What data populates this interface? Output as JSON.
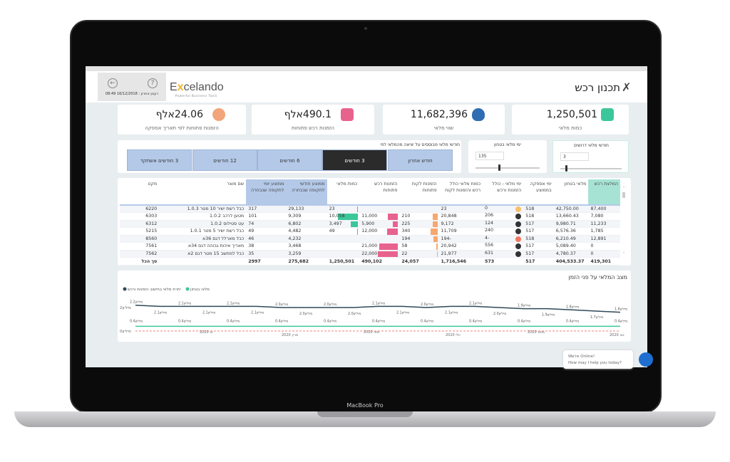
{
  "device": {
    "label": "MacBook Pro"
  },
  "header": {
    "title": "תכנון רכש",
    "refresh": "רענון אחרון : 16/12/2018 08:49",
    "logo": "Excelando",
    "logo_tagline": "Powerful Business Tools",
    "back_icon": "arrow-left-icon",
    "help_icon": "question-icon"
  },
  "kpis": [
    {
      "value": "1,250,501",
      "label": "כמות מלאי",
      "icon": "hand-truck-icon",
      "color": "#3cc79a"
    },
    {
      "value": "11,682,396",
      "label": "שווי מלאי",
      "icon": "money-bag-icon",
      "color": "#2f6db3"
    },
    {
      "value": "490.1אלף",
      "label": "הזמנות רכש פתוחות",
      "icon": "truck-icon",
      "color": "#e8628e"
    },
    {
      "value": "24.06אלף",
      "label": "הזמנות פתוחות לפי תאריך אספקה",
      "icon": "person-clock-icon",
      "color": "#f2a57a"
    }
  ],
  "filters": {
    "label": "חודשי מלאי מבוססים על יציאה מהמלאי לפי",
    "options": [
      "חודש אחרון",
      "3 חודשים",
      "6 חודשים",
      "12 חודשים",
      "3 חודשים אשתקד"
    ],
    "selected": "3 חודשים",
    "sliders": [
      {
        "label": "חודשי מלאי דרושים",
        "value": "3",
        "level": 0.1
      },
      {
        "label": "ימי מלאי בטחון",
        "value": "135",
        "level": 0.35
      }
    ]
  },
  "table": {
    "columns": [
      "המלצת רכש",
      "מלאי בטחון",
      "ימי אספקה בממוצע",
      "ימי מלאי - כולל הזמנות ורכש",
      "כמות מלאי כולל רכש והזמנות לקוח",
      "הזמנות לקוח פתוחות",
      "הזמנות רכש פתוחות",
      "כמות מלאי",
      "ממוצע חודשי לתקופה שנבחרה",
      "ממוצע יומי לתקופה שנבחרה",
      "שם מוצר",
      "מקט"
    ],
    "rows": [
      {
        "rec": "87,400",
        "safety": "42,750.00",
        "supply": "518",
        "days": "0",
        "status": "#f7c06a",
        "total": "23",
        "cust": "",
        "purch": "",
        "stock": "23",
        "monthly": "29,133",
        "daily": "317",
        "name": "כבל רשת ישיר 10 מטר 1.0.3",
        "sku": "6220"
      },
      {
        "rec": "7,080",
        "safety": "13,660.43",
        "supply": "518",
        "days": "206",
        "status": "#333333",
        "total": "20,848",
        "cust": "210",
        "purch": "11,000",
        "stock": "10,058",
        "monthly": "9,309",
        "daily": "101",
        "name": "מטען לרכב 1.0.2",
        "sku": "6303"
      },
      {
        "rec": "11,233",
        "safety": "9,980.71",
        "supply": "517",
        "days": "124",
        "status": "#333333",
        "total": "9,172",
        "cust": "225",
        "purch": "5,900",
        "stock": "3,497",
        "monthly": "6,802",
        "daily": "74",
        "name": "עט סטילוס 1.0.2",
        "sku": "6312"
      },
      {
        "rec": "1,785",
        "safety": "6,576.36",
        "supply": "517",
        "days": "240",
        "status": "#333333",
        "total": "11,709",
        "cust": "340",
        "purch": "12,000",
        "stock": "49",
        "monthly": "4,482",
        "daily": "49",
        "name": "כבל רשת ישיר 5 מטר 1.0.1",
        "sku": "5215"
      },
      {
        "rec": "12,891",
        "safety": "6,210.49",
        "supply": "518",
        "days": "-4",
        "status": "#f2775e",
        "total": "-194",
        "cust": "194",
        "purch": "",
        "stock": "",
        "monthly": "4,232",
        "daily": "46",
        "name": "כבל מארלל דגם 36א",
        "sku": "8560"
      },
      {
        "rec": "0",
        "safety": "5,089.40",
        "supply": "517",
        "days": "556",
        "status": "#333333",
        "total": "20,942",
        "cust": "58",
        "purch": "21,000",
        "stock": "",
        "monthly": "3,468",
        "daily": "38",
        "name": "מאריך איכות גבוהה דגם 34א",
        "sku": "7561"
      },
      {
        "rec": "0",
        "safety": "4,780.37",
        "supply": "517",
        "days": "631",
        "status": "#333333",
        "total": "21,977",
        "cust": "22",
        "purch": "22,000",
        "stock": "",
        "monthly": "3,259",
        "daily": "35",
        "name": "כבל למחשב 15 מטר דגם 2א",
        "sku": "7562"
      }
    ],
    "total": {
      "rec": "419,301",
      "safety": "404,533.37",
      "supply": "517",
      "days": "573",
      "total": "1,716,546",
      "cust": "24,057",
      "purch": "490,102",
      "stock": "1,250,501",
      "monthly": "275,682",
      "daily": "2997",
      "name": "",
      "sku": "סך הכל"
    },
    "bar_colors": {
      "stock": "#3cc79a",
      "purch": "#e8628e",
      "cust": "#f7a86e"
    }
  },
  "chart_data": {
    "type": "line",
    "title": "מצב המלאי  על פני הזמן",
    "unit_suffix": "מיליון",
    "y_ticks": [
      "0מיליון",
      "2מיליון"
    ],
    "x_ticks": [
      "ינו 2020",
      "מרץ 2020",
      "מאי 2020",
      "יולי 2020",
      "ספט 2020",
      "נוב 2020"
    ],
    "series": [
      {
        "name": "יתרת מלאי בחישוב הזמנות ורכש",
        "color": "#2f4858",
        "values": [
          2.2,
          2.1,
          2.1,
          2.1,
          2.1,
          2.1,
          2.0,
          2.0,
          2.0,
          2.0,
          2.1,
          2.1,
          2.0,
          2.1,
          2.1,
          2.0,
          1.9,
          1.9,
          1.8,
          1.7,
          1.6
        ]
      },
      {
        "name": "מלאי בטחון",
        "color": "#3cc79a",
        "values": [
          0.4,
          0.4,
          0.4,
          0.4,
          0.4,
          0.4,
          0.4,
          0.4,
          0.4,
          0.4,
          0.4,
          0.4,
          0.4,
          0.4,
          0.4,
          0.4,
          0.4,
          0.4,
          0.4,
          0.4,
          0.4
        ]
      }
    ],
    "reference_line": {
      "value": 0,
      "color": "#f08080",
      "style": "dashed"
    }
  },
  "chat": {
    "line1": "We're Online!",
    "line2": "How may I help you today?"
  }
}
